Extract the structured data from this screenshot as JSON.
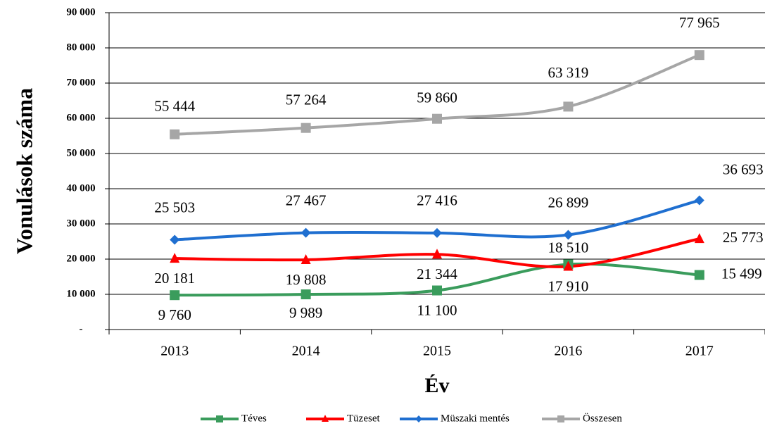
{
  "chart_data": {
    "type": "line",
    "y_label": "Vonulások száma",
    "x_label": "Év",
    "categories": [
      "2013",
      "2014",
      "2015",
      "2016",
      "2017"
    ],
    "ylim": [
      0,
      90000
    ],
    "yticks": [
      {
        "value": 0,
        "label": "-"
      },
      {
        "value": 10000,
        "label": "10 000"
      },
      {
        "value": 20000,
        "label": "20 000"
      },
      {
        "value": 30000,
        "label": "30 000"
      },
      {
        "value": 40000,
        "label": "40 000"
      },
      {
        "value": 50000,
        "label": "50 000"
      },
      {
        "value": 60000,
        "label": "60 000"
      },
      {
        "value": 70000,
        "label": "70 000"
      },
      {
        "value": 80000,
        "label": "80 000"
      },
      {
        "value": 90000,
        "label": "90 000"
      }
    ],
    "grid": true,
    "legend": "bottom",
    "series": [
      {
        "name": "Téves",
        "color": "#3a9c5c",
        "marker": "square",
        "values": [
          9760,
          9989,
          11100,
          18510,
          15499
        ],
        "value_labels": [
          "9 760",
          "9 989",
          "11 100",
          "18 510",
          "15 499"
        ]
      },
      {
        "name": "Tüzeset",
        "color": "#ff0000",
        "marker": "triangle",
        "values": [
          20181,
          19808,
          21344,
          17910,
          25773
        ],
        "value_labels": [
          "20 181",
          "19 808",
          "21 344",
          "17 910",
          "25 773"
        ]
      },
      {
        "name": "Müszaki mentés",
        "color": "#1f6fd0",
        "marker": "diamond",
        "values": [
          25503,
          27467,
          27416,
          26899,
          36693
        ],
        "value_labels": [
          "25 503",
          "27 467",
          "27 416",
          "26 899",
          "36 693"
        ]
      },
      {
        "name": "Összesen",
        "color": "#a6a6a6",
        "marker": "square",
        "values": [
          55444,
          57264,
          59860,
          63319,
          77965
        ],
        "value_labels": [
          "55 444",
          "57 264",
          "59 860",
          "63 319",
          "77 965"
        ]
      }
    ]
  }
}
